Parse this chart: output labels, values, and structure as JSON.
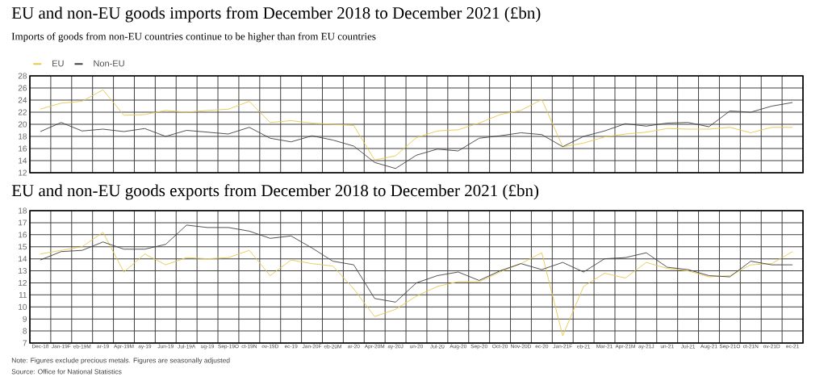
{
  "chart_data": [
    {
      "type": "line",
      "title": "EU and non-EU goods imports from December 2018 to December 2021 (£bn)",
      "subtitle": "Imports of goods from non-EU countries continue to be higher than from EU countries",
      "categories": [
        null,
        null,
        null,
        null,
        null,
        null,
        null,
        null,
        null,
        null,
        null,
        null,
        null,
        null,
        null,
        null,
        null,
        null,
        null,
        null,
        null,
        null,
        null,
        null,
        null,
        null,
        null,
        null,
        null,
        null,
        null,
        null,
        null,
        null,
        null,
        null,
        null
      ],
      "ylim": [
        12,
        28
      ],
      "yticks": [
        12,
        14,
        16,
        18,
        20,
        22,
        24,
        26,
        28
      ],
      "grid": true,
      "legend": "top left",
      "series": [
        {
          "name": "EU",
          "color": "#e6c84a",
          "values": [
            22.5,
            23.5,
            23.8,
            25.7,
            21.5,
            21.6,
            22.3,
            22.0,
            22.3,
            22.5,
            23.8,
            20.3,
            20.6,
            20.2,
            20.0,
            19.8,
            14.1,
            14.8,
            17.8,
            18.9,
            19.1,
            20.2,
            21.6,
            22.3,
            24.1,
            16.3,
            16.9,
            17.9,
            18.4,
            18.7,
            19.3,
            19.2,
            19.2,
            19.5,
            18.6,
            19.5,
            19.5
          ]
        },
        {
          "name": "Non-EU",
          "color": "#404040",
          "values": [
            18.8,
            20.3,
            18.9,
            19.2,
            18.8,
            19.3,
            18.0,
            19.0,
            18.7,
            18.4,
            19.5,
            17.7,
            17.1,
            18.1,
            17.4,
            16.4,
            13.7,
            12.7,
            14.9,
            15.9,
            15.6,
            17.7,
            18.1,
            18.6,
            18.3,
            16.3,
            18.0,
            18.9,
            20.1,
            19.7,
            20.2,
            20.3,
            19.6,
            22.2,
            22.0,
            23.0,
            23.6
          ]
        }
      ]
    },
    {
      "type": "line",
      "title": "EU and non-EU goods exports from December 2018 to December 2021 (£bn)",
      "categories": [
        "Dec-18",
        "Jan-19F",
        "eb-19M",
        "ar-19",
        "Apr-19M",
        "ay-19",
        "Jun-19",
        "Jul-19A",
        "ug-19",
        "Sep-19O",
        "ct-19N",
        "ov-19D",
        "ec-19",
        "Jan-20F",
        "eb-20M",
        "ar-20",
        "Apr-20M",
        "ay-20J",
        "un-20",
        "Jul-20",
        "Aug-20",
        "Sep-20",
        "Oct-20",
        "Nov-20D",
        "ec-20",
        "Jan-21F",
        "eb-21",
        "Mar-21",
        "Apr-21M",
        "ay-21J",
        "un-21",
        "Jul-21",
        "Aug-21",
        "Sep-21O",
        "ct-21N",
        "ov-21D",
        "ec-21"
      ],
      "ylim": [
        7,
        18
      ],
      "yticks": [
        7,
        8,
        9,
        10,
        11,
        12,
        13,
        14,
        15,
        16,
        17,
        18
      ],
      "grid": true,
      "annotations": [
        "Note: Figures exclude precious metals. Figures are seasonally adjusted",
        "Source: Office for National Statistics"
      ],
      "series": [
        {
          "color": "#e6c84a",
          "values": [
            14.4,
            14.7,
            15.0,
            16.2,
            12.9,
            14.4,
            13.5,
            14.1,
            14.0,
            14.1,
            14.7,
            12.6,
            13.9,
            13.6,
            13.4,
            11.5,
            9.2,
            9.8,
            10.9,
            11.7,
            12.1,
            12.1,
            12.9,
            13.6,
            14.5,
            7.6,
            11.7,
            12.8,
            12.4,
            13.7,
            13.2,
            13.0,
            12.5,
            12.6,
            13.5,
            13.6,
            14.6
          ]
        },
        {
          "color": "#404040",
          "values": [
            13.9,
            14.6,
            14.7,
            15.4,
            14.8,
            14.8,
            15.2,
            16.8,
            16.6,
            16.6,
            16.3,
            15.7,
            15.9,
            14.9,
            13.8,
            13.5,
            10.7,
            10.4,
            12.0,
            12.6,
            12.9,
            12.2,
            13.0,
            13.6,
            13.1,
            13.7,
            12.9,
            14.0,
            14.1,
            14.5,
            13.3,
            13.1,
            12.6,
            12.5,
            13.8,
            13.5,
            13.5
          ]
        }
      ]
    }
  ]
}
